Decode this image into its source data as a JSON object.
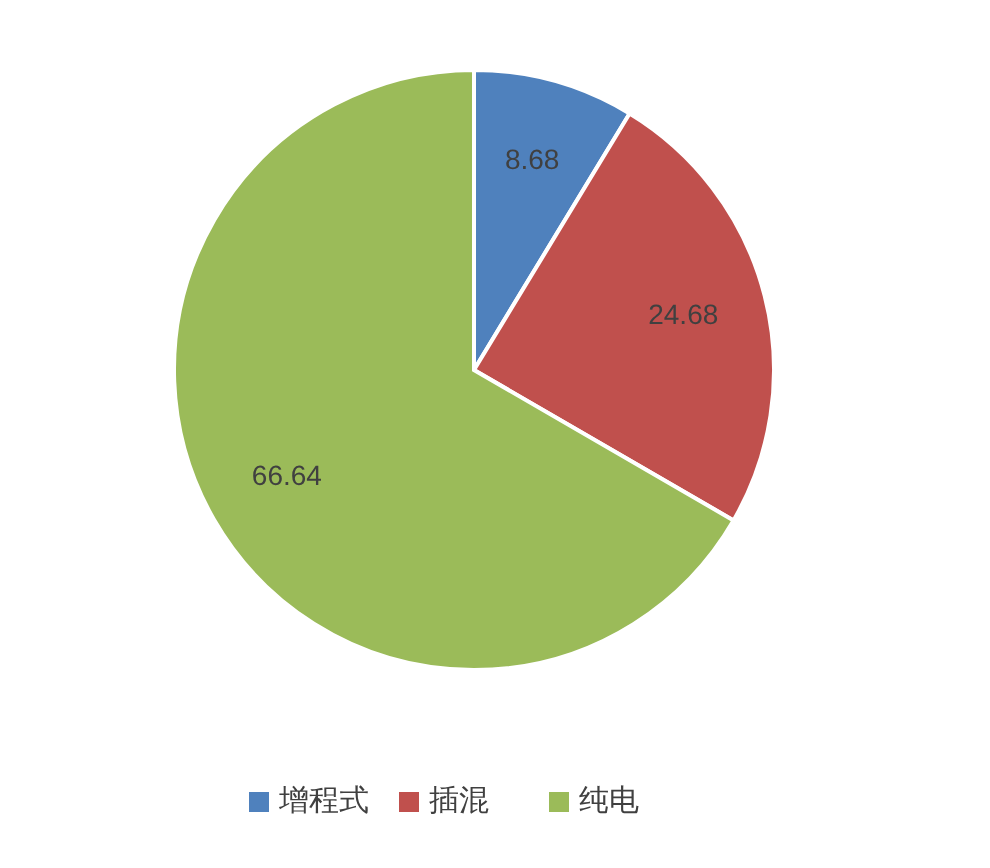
{
  "chart_data": {
    "type": "pie",
    "categories": [
      "增程式",
      "插混",
      "纯电"
    ],
    "values": [
      8.68,
      24.68,
      66.64
    ],
    "colors": [
      "#4f81bd",
      "#c0504d",
      "#9bbb59"
    ],
    "data_labels": true,
    "legend": "bottom"
  }
}
